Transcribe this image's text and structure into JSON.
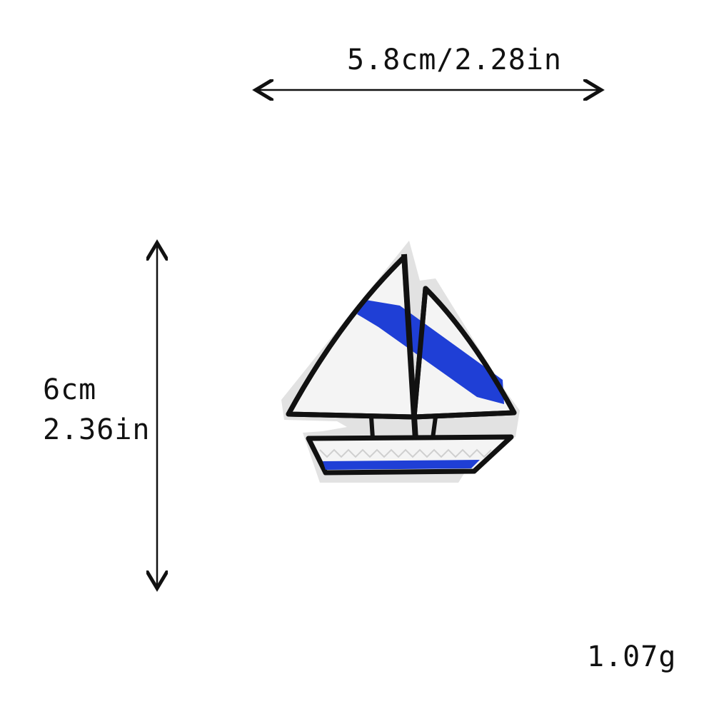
{
  "dimensions": {
    "width_label": "5.8cm/2.28in",
    "height_cm_label": "6cm",
    "height_in_label": "2.36in"
  },
  "weight_label": "1.07g",
  "colors": {
    "outline": "#111111",
    "sail_white": "#f4f4f4",
    "felt_border": "#e2e2e2",
    "accent_blue": "#1f3fd6"
  },
  "icons": {
    "product": "sailboat-patch-icon",
    "width_arrow": "double-arrow-horizontal-icon",
    "height_arrow": "double-arrow-vertical-icon"
  }
}
